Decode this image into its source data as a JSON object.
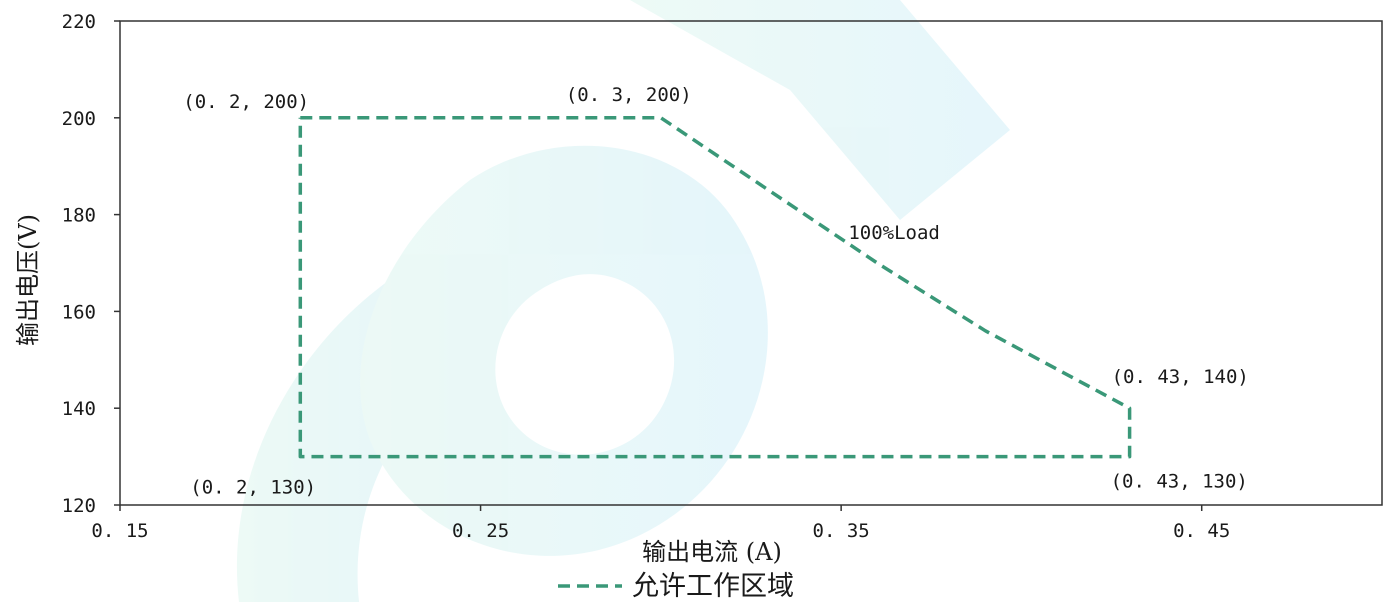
{
  "chart_data": {
    "type": "line",
    "xlabel": "输出电流 (A)",
    "ylabel": "输出电压(V)",
    "xlim": [
      0.15,
      0.5
    ],
    "ylim": [
      120,
      220
    ],
    "xticks": [
      0.15,
      0.25,
      0.35,
      0.45
    ],
    "xtick_labels": [
      "0. 15",
      "0. 25",
      "0. 35",
      "0. 45"
    ],
    "yticks": [
      120,
      140,
      160,
      180,
      200,
      220
    ],
    "ytick_labels": [
      "120",
      "140",
      "160",
      "180",
      "200",
      "220"
    ],
    "grid": false,
    "legend_position": "bottom",
    "series": [
      {
        "name": "允许工作区域",
        "color": "#3a9878",
        "line_style": "dashed",
        "x": [
          0.2,
          0.3,
          0.33,
          0.36,
          0.39,
          0.43,
          0.43,
          0.2,
          0.2
        ],
        "y": [
          200,
          200,
          185,
          170,
          156,
          140,
          130,
          130,
          200
        ]
      }
    ],
    "annotations": [
      {
        "text": "(0. 2, 200)",
        "x": 0.2,
        "y": 200
      },
      {
        "text": "(0. 3, 200)",
        "x": 0.3,
        "y": 200
      },
      {
        "text": "100%Load",
        "x": 0.352,
        "y": 175
      },
      {
        "text": "(0. 43, 140)",
        "x": 0.43,
        "y": 140
      },
      {
        "text": "(0. 43, 130)",
        "x": 0.43,
        "y": 130
      },
      {
        "text": "(0. 2, 130)",
        "x": 0.2,
        "y": 130
      }
    ]
  }
}
